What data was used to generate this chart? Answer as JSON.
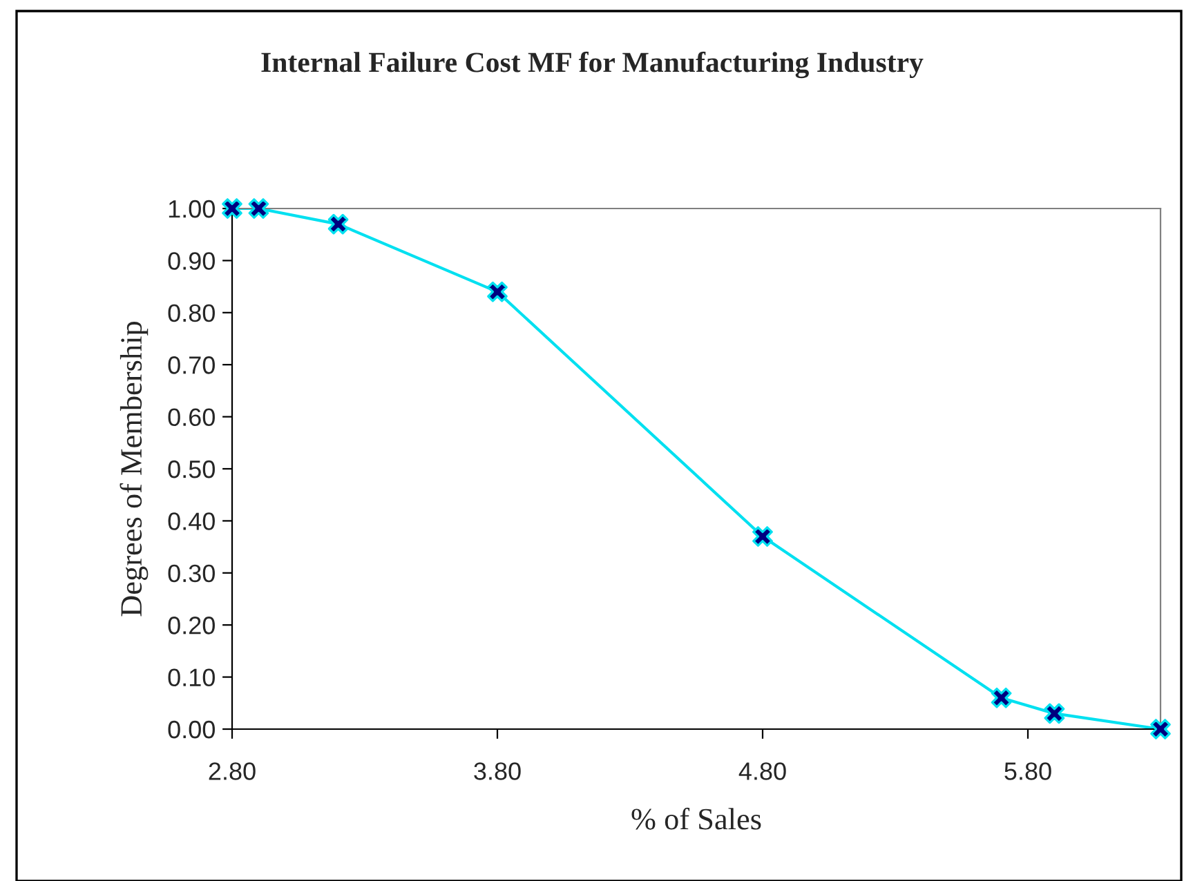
{
  "chart_data": {
    "type": "line",
    "title": "Internal Failure Cost MF for Manufacturing Industry",
    "xlabel": "% of Sales",
    "ylabel": "Degrees of Membership",
    "x": [
      2.8,
      2.9,
      3.2,
      3.8,
      4.8,
      5.7,
      5.9,
      6.3
    ],
    "series": [
      {
        "color": "#00e0f0",
        "values": [
          1.0,
          1.0,
          0.97,
          0.84,
          0.37,
          0.06,
          0.03,
          0.0
        ]
      }
    ],
    "xlim": [
      2.8,
      6.3
    ],
    "xticks": [
      {
        "value": 2.8,
        "label": "2.80"
      },
      {
        "value": 3.8,
        "label": "3.80"
      },
      {
        "value": 4.8,
        "label": "4.80"
      },
      {
        "value": 5.8,
        "label": "5.80"
      }
    ],
    "ylim": [
      0,
      1
    ],
    "yticks": [
      {
        "value": 0,
        "label": "0.00"
      },
      {
        "value": 0.1,
        "label": "0.10"
      },
      {
        "value": 0.2,
        "label": "0.20"
      },
      {
        "value": 0.3,
        "label": "0.30"
      },
      {
        "value": 0.4,
        "label": "0.40"
      },
      {
        "value": 0.5,
        "label": "0.50"
      },
      {
        "value": 0.6,
        "label": "0.60"
      },
      {
        "value": 0.7,
        "label": "0.70"
      },
      {
        "value": 0.8,
        "label": "0.80"
      },
      {
        "value": 0.9,
        "label": "0.90"
      },
      {
        "value": 1.0,
        "label": "1.00"
      }
    ],
    "grid": false,
    "legend": false,
    "marker": "cross",
    "line_style": "solid"
  }
}
